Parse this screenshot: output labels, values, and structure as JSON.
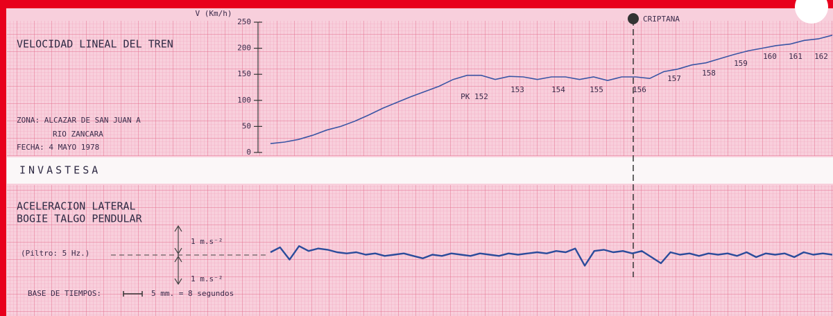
{
  "band_label": "INVASTESA",
  "chart_data": [
    {
      "type": "line",
      "title": "VELOCIDAD LINEAL DEL TREN",
      "y_label": "V (Km/h)",
      "ylim": [
        0,
        250
      ],
      "yticks": [
        0,
        50,
        100,
        150,
        200,
        250
      ],
      "color": "#3a55a4",
      "values": [
        17,
        20,
        25,
        33,
        43,
        50,
        60,
        72,
        85,
        96,
        107,
        117,
        127,
        140,
        148,
        148,
        140,
        146,
        145,
        140,
        145,
        145,
        140,
        145,
        138,
        145,
        145,
        142,
        155,
        160,
        168,
        172,
        180,
        188,
        195,
        200,
        205,
        208,
        215,
        218,
        225
      ],
      "zone": [
        "ZONA: ALCAZAR DE SAN JUAN A",
        "RIO ZANCARA"
      ],
      "date": "FECHA: 4 MAYO 1978",
      "station": "CRIPTANA",
      "kilometer_posts": [
        "PK 152",
        "153",
        "154",
        "155",
        "156",
        "157",
        "158",
        "159",
        "160",
        "161",
        "162"
      ]
    },
    {
      "type": "line",
      "title": [
        "ACELERACION LATERAL",
        "BOGIE TALGO PENDULAR"
      ],
      "filter": "(Piltro: 5 Hz.)",
      "scale_labels": [
        "1 m.s⁻²",
        "1 m.s⁻²"
      ],
      "time_base": [
        "BASE DE TIEMPOS:",
        "5 mm. = 8 segundos"
      ],
      "ylim": [
        -2.4,
        2.4
      ],
      "color": "#2b4c9b",
      "values": [
        0.2,
        0.6,
        -0.4,
        0.7,
        0.3,
        0.5,
        0.4,
        0.2,
        0.1,
        0.2,
        0.0,
        0.1,
        -0.1,
        0.0,
        0.1,
        -0.1,
        -0.3,
        0.0,
        -0.1,
        0.1,
        0.0,
        -0.1,
        0.1,
        0.0,
        -0.1,
        0.1,
        0.0,
        0.1,
        0.2,
        0.1,
        0.3,
        0.2,
        0.5,
        -0.9,
        0.3,
        0.4,
        0.2,
        0.3,
        0.1,
        0.3,
        -0.2,
        -0.7,
        0.2,
        0.0,
        0.1,
        -0.1,
        0.1,
        0.0,
        0.1,
        -0.1,
        0.2,
        -0.2,
        0.1,
        0.0,
        0.1,
        -0.2,
        0.2,
        0.0,
        0.1,
        0.0
      ]
    }
  ]
}
